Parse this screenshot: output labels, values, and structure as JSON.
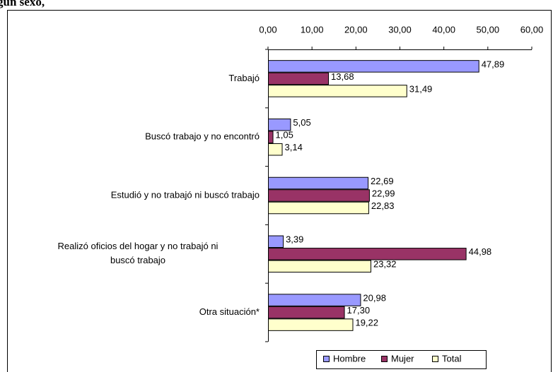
{
  "chart_data": {
    "type": "hbar",
    "title": "gún sexo,",
    "categories": [
      "Trabajó",
      "Buscó trabajo y no encontró",
      "Estudió y no trabajó ni buscó trabajo",
      "Realizó oficios del hogar y no trabajó ni buscó trabajo",
      "Otra situación*"
    ],
    "series": [
      {
        "name": "Hombre",
        "color": "#9999ff",
        "values": [
          47.89,
          5.05,
          22.69,
          3.39,
          20.98
        ],
        "value_labels": [
          "47,89",
          "5,05",
          "22,69",
          "3,39",
          "20,98"
        ]
      },
      {
        "name": "Mujer",
        "color": "#993366",
        "values": [
          13.68,
          1.05,
          22.99,
          44.98,
          17.3
        ],
        "value_labels": [
          "13,68",
          "1,05",
          "22,99",
          "44,98",
          "17,30"
        ]
      },
      {
        "name": "Total",
        "color": "#ffffcc",
        "values": [
          31.49,
          3.14,
          22.83,
          23.32,
          19.22
        ],
        "value_labels": [
          "31,49",
          "3,14",
          "22,83",
          "23,32",
          "19,22"
        ]
      }
    ],
    "xlim": [
      0,
      60
    ],
    "xticks": [
      {
        "value": 0,
        "label": "0,00"
      },
      {
        "value": 10,
        "label": "10,00"
      },
      {
        "value": 20,
        "label": "20,00"
      },
      {
        "value": 30,
        "label": "30,00"
      },
      {
        "value": 40,
        "label": "40,00"
      },
      {
        "value": 50,
        "label": "50,00"
      },
      {
        "value": 60,
        "label": "60,00"
      }
    ],
    "legend": "bottom"
  }
}
